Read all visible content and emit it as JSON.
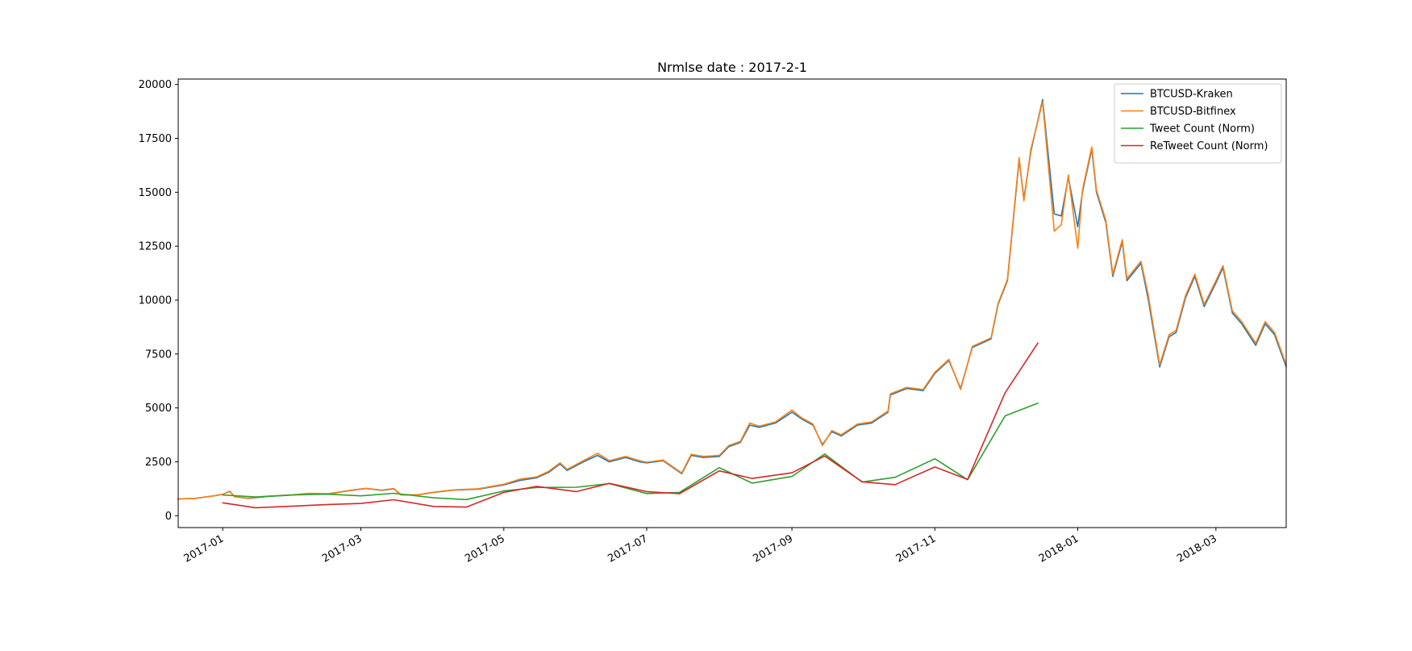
{
  "chart_data": {
    "type": "line",
    "title": "Nrmlse date : 2017-2-1",
    "xlabel": "",
    "ylabel": "",
    "x_range": [
      "2016-12-13",
      "2018-03-31"
    ],
    "ylim": [
      -550,
      20250
    ],
    "grid": false,
    "legend_position": "top-right",
    "x_ticks": [
      "2017-01",
      "2017-03",
      "2017-05",
      "2017-07",
      "2017-09",
      "2017-11",
      "2018-01",
      "2018-03"
    ],
    "x_tick_dates": [
      "2017-01-01",
      "2017-03-01",
      "2017-05-01",
      "2017-07-01",
      "2017-09-01",
      "2017-11-01",
      "2018-01-01",
      "2018-03-01"
    ],
    "y_ticks": [
      0,
      2500,
      5000,
      7500,
      10000,
      12500,
      15000,
      17500,
      20000
    ],
    "series": [
      {
        "name": "BTCUSD-Kraken",
        "color": "#1f77b4",
        "points": [
          [
            "2016-12-13",
            780
          ],
          [
            "2016-12-20",
            800
          ],
          [
            "2016-12-27",
            900
          ],
          [
            "2017-01-01",
            990
          ],
          [
            "2017-01-04",
            1130
          ],
          [
            "2017-01-06",
            890
          ],
          [
            "2017-01-12",
            800
          ],
          [
            "2017-01-20",
            890
          ],
          [
            "2017-01-31",
            960
          ],
          [
            "2017-02-07",
            1030
          ],
          [
            "2017-02-15",
            1010
          ],
          [
            "2017-02-25",
            1180
          ],
          [
            "2017-03-03",
            1260
          ],
          [
            "2017-03-10",
            1180
          ],
          [
            "2017-03-15",
            1250
          ],
          [
            "2017-03-18",
            970
          ],
          [
            "2017-03-25",
            960
          ],
          [
            "2017-04-01",
            1080
          ],
          [
            "2017-04-10",
            1190
          ],
          [
            "2017-04-20",
            1230
          ],
          [
            "2017-05-01",
            1430
          ],
          [
            "2017-05-08",
            1640
          ],
          [
            "2017-05-15",
            1760
          ],
          [
            "2017-05-20",
            2000
          ],
          [
            "2017-05-25",
            2400
          ],
          [
            "2017-05-28",
            2100
          ],
          [
            "2017-06-04",
            2500
          ],
          [
            "2017-06-10",
            2800
          ],
          [
            "2017-06-15",
            2500
          ],
          [
            "2017-06-22",
            2700
          ],
          [
            "2017-06-28",
            2500
          ],
          [
            "2017-07-01",
            2450
          ],
          [
            "2017-07-08",
            2550
          ],
          [
            "2017-07-16",
            1950
          ],
          [
            "2017-07-20",
            2800
          ],
          [
            "2017-07-25",
            2700
          ],
          [
            "2017-08-01",
            2750
          ],
          [
            "2017-08-05",
            3200
          ],
          [
            "2017-08-10",
            3400
          ],
          [
            "2017-08-14",
            4200
          ],
          [
            "2017-08-18",
            4100
          ],
          [
            "2017-08-25",
            4300
          ],
          [
            "2017-09-01",
            4800
          ],
          [
            "2017-09-05",
            4500
          ],
          [
            "2017-09-10",
            4200
          ],
          [
            "2017-09-14",
            3300
          ],
          [
            "2017-09-18",
            3900
          ],
          [
            "2017-09-22",
            3700
          ],
          [
            "2017-09-29",
            4200
          ],
          [
            "2017-10-05",
            4300
          ],
          [
            "2017-10-12",
            4800
          ],
          [
            "2017-10-13",
            5600
          ],
          [
            "2017-10-20",
            5900
          ],
          [
            "2017-10-27",
            5800
          ],
          [
            "2017-11-01",
            6600
          ],
          [
            "2017-11-07",
            7200
          ],
          [
            "2017-11-12",
            5900
          ],
          [
            "2017-11-17",
            7800
          ],
          [
            "2017-11-25",
            8200
          ],
          [
            "2017-11-28",
            9800
          ],
          [
            "2017-12-02",
            10900
          ],
          [
            "2017-12-07",
            16500
          ],
          [
            "2017-12-09",
            14700
          ],
          [
            "2017-12-12",
            16900
          ],
          [
            "2017-12-17",
            19300
          ],
          [
            "2017-12-22",
            14000
          ],
          [
            "2017-12-25",
            13900
          ],
          [
            "2017-12-28",
            15700
          ],
          [
            "2018-01-01",
            13400
          ],
          [
            "2018-01-03",
            15000
          ],
          [
            "2018-01-07",
            17000
          ],
          [
            "2018-01-09",
            15000
          ],
          [
            "2018-01-13",
            13600
          ],
          [
            "2018-01-16",
            11100
          ],
          [
            "2018-01-20",
            12700
          ],
          [
            "2018-01-22",
            10900
          ],
          [
            "2018-01-28",
            11700
          ],
          [
            "2018-01-31",
            10100
          ],
          [
            "2018-02-05",
            6900
          ],
          [
            "2018-02-09",
            8300
          ],
          [
            "2018-02-12",
            8500
          ],
          [
            "2018-02-16",
            10100
          ],
          [
            "2018-02-20",
            11100
          ],
          [
            "2018-02-24",
            9700
          ],
          [
            "2018-03-01",
            10800
          ],
          [
            "2018-03-04",
            11500
          ],
          [
            "2018-03-08",
            9400
          ],
          [
            "2018-03-12",
            8900
          ],
          [
            "2018-03-18",
            7900
          ],
          [
            "2018-03-22",
            8900
          ],
          [
            "2018-03-26",
            8400
          ],
          [
            "2018-03-31",
            6900
          ]
        ]
      },
      {
        "name": "BTCUSD-Bitfinex",
        "color": "#ff7f0e",
        "points": [
          [
            "2016-12-13",
            780
          ],
          [
            "2016-12-20",
            800
          ],
          [
            "2016-12-27",
            900
          ],
          [
            "2017-01-01",
            990
          ],
          [
            "2017-01-04",
            1140
          ],
          [
            "2017-01-06",
            880
          ],
          [
            "2017-01-12",
            810
          ],
          [
            "2017-01-20",
            900
          ],
          [
            "2017-01-31",
            970
          ],
          [
            "2017-02-07",
            1040
          ],
          [
            "2017-02-15",
            1020
          ],
          [
            "2017-02-25",
            1190
          ],
          [
            "2017-03-03",
            1270
          ],
          [
            "2017-03-10",
            1190
          ],
          [
            "2017-03-15",
            1260
          ],
          [
            "2017-03-18",
            980
          ],
          [
            "2017-03-25",
            970
          ],
          [
            "2017-04-01",
            1090
          ],
          [
            "2017-04-10",
            1200
          ],
          [
            "2017-04-20",
            1250
          ],
          [
            "2017-05-01",
            1460
          ],
          [
            "2017-05-08",
            1700
          ],
          [
            "2017-05-15",
            1800
          ],
          [
            "2017-05-20",
            2050
          ],
          [
            "2017-05-25",
            2450
          ],
          [
            "2017-05-28",
            2150
          ],
          [
            "2017-06-04",
            2550
          ],
          [
            "2017-06-10",
            2900
          ],
          [
            "2017-06-15",
            2550
          ],
          [
            "2017-06-22",
            2750
          ],
          [
            "2017-06-28",
            2550
          ],
          [
            "2017-07-01",
            2480
          ],
          [
            "2017-07-08",
            2580
          ],
          [
            "2017-07-16",
            1980
          ],
          [
            "2017-07-20",
            2850
          ],
          [
            "2017-07-25",
            2750
          ],
          [
            "2017-08-01",
            2800
          ],
          [
            "2017-08-05",
            3250
          ],
          [
            "2017-08-10",
            3450
          ],
          [
            "2017-08-14",
            4300
          ],
          [
            "2017-08-18",
            4150
          ],
          [
            "2017-08-25",
            4350
          ],
          [
            "2017-09-01",
            4900
          ],
          [
            "2017-09-05",
            4550
          ],
          [
            "2017-09-10",
            4250
          ],
          [
            "2017-09-14",
            3250
          ],
          [
            "2017-09-18",
            3950
          ],
          [
            "2017-09-22",
            3750
          ],
          [
            "2017-09-29",
            4250
          ],
          [
            "2017-10-05",
            4350
          ],
          [
            "2017-10-12",
            4850
          ],
          [
            "2017-10-13",
            5650
          ],
          [
            "2017-10-20",
            5950
          ],
          [
            "2017-10-27",
            5850
          ],
          [
            "2017-11-01",
            6650
          ],
          [
            "2017-11-07",
            7250
          ],
          [
            "2017-11-12",
            5850
          ],
          [
            "2017-11-17",
            7850
          ],
          [
            "2017-11-25",
            8250
          ],
          [
            "2017-11-28",
            9850
          ],
          [
            "2017-12-02",
            10950
          ],
          [
            "2017-12-07",
            16600
          ],
          [
            "2017-12-09",
            14600
          ],
          [
            "2017-12-12",
            17000
          ],
          [
            "2017-12-17",
            19200
          ],
          [
            "2017-12-22",
            13200
          ],
          [
            "2017-12-25",
            13500
          ],
          [
            "2017-12-28",
            15800
          ],
          [
            "2018-01-01",
            12400
          ],
          [
            "2018-01-03",
            15100
          ],
          [
            "2018-01-07",
            17100
          ],
          [
            "2018-01-09",
            15100
          ],
          [
            "2018-01-13",
            13700
          ],
          [
            "2018-01-16",
            11200
          ],
          [
            "2018-01-20",
            12800
          ],
          [
            "2018-01-22",
            11000
          ],
          [
            "2018-01-28",
            11800
          ],
          [
            "2018-01-31",
            10300
          ],
          [
            "2018-02-05",
            7000
          ],
          [
            "2018-02-09",
            8400
          ],
          [
            "2018-02-12",
            8600
          ],
          [
            "2018-02-16",
            10200
          ],
          [
            "2018-02-20",
            11200
          ],
          [
            "2018-02-24",
            9800
          ],
          [
            "2018-03-01",
            10900
          ],
          [
            "2018-03-04",
            11600
          ],
          [
            "2018-03-08",
            9500
          ],
          [
            "2018-03-12",
            9000
          ],
          [
            "2018-03-18",
            8000
          ],
          [
            "2018-03-22",
            9000
          ],
          [
            "2018-03-26",
            8500
          ],
          [
            "2018-03-31",
            7000
          ]
        ]
      },
      {
        "name": "Tweet Count (Norm)",
        "color": "#2ca02c",
        "points": [
          [
            "2017-01-01",
            960
          ],
          [
            "2017-01-15",
            870
          ],
          [
            "2017-02-01",
            970
          ],
          [
            "2017-02-15",
            1000
          ],
          [
            "2017-03-01",
            920
          ],
          [
            "2017-03-15",
            1040
          ],
          [
            "2017-04-01",
            830
          ],
          [
            "2017-04-15",
            750
          ],
          [
            "2017-05-01",
            1150
          ],
          [
            "2017-05-15",
            1310
          ],
          [
            "2017-06-01",
            1320
          ],
          [
            "2017-06-15",
            1490
          ],
          [
            "2017-07-01",
            1030
          ],
          [
            "2017-07-15",
            1080
          ],
          [
            "2017-08-01",
            2230
          ],
          [
            "2017-08-15",
            1510
          ],
          [
            "2017-09-01",
            1820
          ],
          [
            "2017-09-15",
            2860
          ],
          [
            "2017-10-01",
            1560
          ],
          [
            "2017-10-15",
            1780
          ],
          [
            "2017-11-01",
            2640
          ],
          [
            "2017-11-15",
            1670
          ],
          [
            "2017-12-01",
            4630
          ],
          [
            "2017-12-15",
            5220
          ]
        ]
      },
      {
        "name": "ReTweet Count (Norm)",
        "color": "#d62728",
        "points": [
          [
            "2017-01-01",
            600
          ],
          [
            "2017-01-15",
            370
          ],
          [
            "2017-02-01",
            450
          ],
          [
            "2017-02-15",
            520
          ],
          [
            "2017-03-01",
            570
          ],
          [
            "2017-03-15",
            740
          ],
          [
            "2017-04-01",
            430
          ],
          [
            "2017-04-15",
            400
          ],
          [
            "2017-05-01",
            1080
          ],
          [
            "2017-05-15",
            1360
          ],
          [
            "2017-06-01",
            1120
          ],
          [
            "2017-06-15",
            1500
          ],
          [
            "2017-07-01",
            1120
          ],
          [
            "2017-07-15",
            1020
          ],
          [
            "2017-08-01",
            2080
          ],
          [
            "2017-08-15",
            1730
          ],
          [
            "2017-09-01",
            1990
          ],
          [
            "2017-09-15",
            2770
          ],
          [
            "2017-10-01",
            1570
          ],
          [
            "2017-10-15",
            1440
          ],
          [
            "2017-11-01",
            2260
          ],
          [
            "2017-11-15",
            1680
          ],
          [
            "2017-12-01",
            5700
          ],
          [
            "2017-12-15",
            8010
          ]
        ]
      }
    ]
  }
}
